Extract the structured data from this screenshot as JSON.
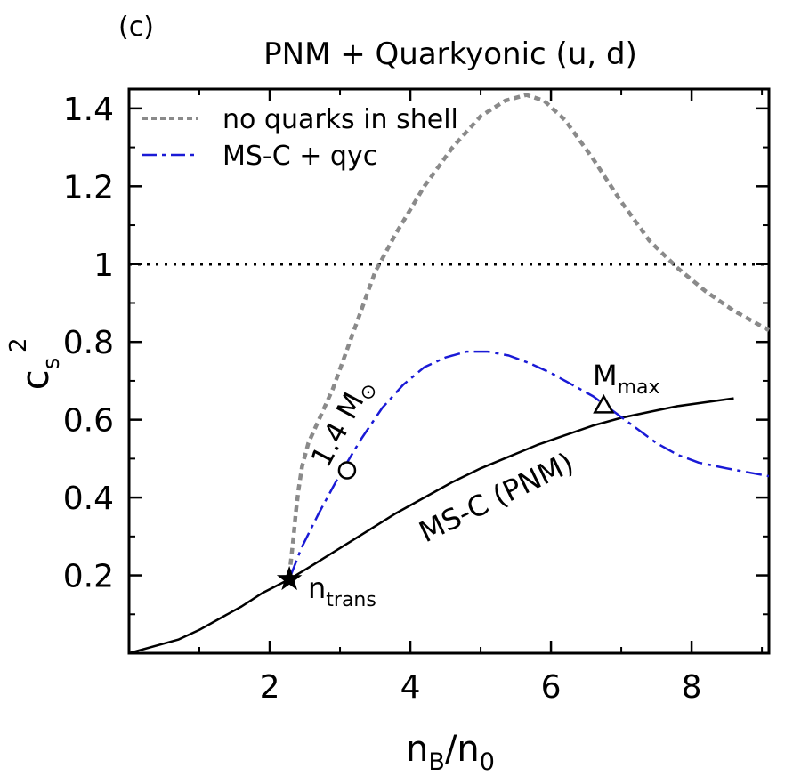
{
  "panel_label": "(c)",
  "chart_data": {
    "type": "line",
    "title": "PNM + Quarkyonic (u, d)",
    "xlabel": {
      "main": "n",
      "sub": "B",
      "rest": "/n",
      "sub2": "0"
    },
    "ylabel": {
      "main": "c",
      "sup": "2",
      "sub": "s"
    },
    "xlim": [
      0,
      9.1
    ],
    "ylim": [
      0,
      1.45
    ],
    "x_ticks": [
      {
        "value": 2,
        "label": "2"
      },
      {
        "value": 4,
        "label": "4"
      },
      {
        "value": 6,
        "label": "6"
      },
      {
        "value": 8,
        "label": "8"
      }
    ],
    "y_ticks": [
      {
        "value": 0.2,
        "label": "0.2"
      },
      {
        "value": 0.4,
        "label": "0.4"
      },
      {
        "value": 0.6,
        "label": "0.6"
      },
      {
        "value": 0.8,
        "label": "0.8"
      },
      {
        "value": 1.0,
        "label": "1"
      },
      {
        "value": 1.2,
        "label": "1.2"
      },
      {
        "value": 1.4,
        "label": "1.4"
      }
    ],
    "grid": false,
    "legend_position": "top-left",
    "series": [
      {
        "name": "no quarks in shell",
        "color": "#8a8a8a",
        "style": "dotted",
        "in_legend": true,
        "points": [
          [
            2.28,
            0.2
          ],
          [
            2.31,
            0.25
          ],
          [
            2.34,
            0.3
          ],
          [
            2.37,
            0.36
          ],
          [
            2.41,
            0.42
          ],
          [
            2.46,
            0.48
          ],
          [
            2.55,
            0.54
          ],
          [
            2.7,
            0.6
          ],
          [
            2.9,
            0.68
          ],
          [
            3.1,
            0.78
          ],
          [
            3.3,
            0.88
          ],
          [
            3.5,
            0.98
          ],
          [
            3.8,
            1.08
          ],
          [
            4.2,
            1.2
          ],
          [
            4.6,
            1.3
          ],
          [
            5.0,
            1.38
          ],
          [
            5.35,
            1.42
          ],
          [
            5.65,
            1.435
          ],
          [
            5.9,
            1.42
          ],
          [
            6.2,
            1.37
          ],
          [
            6.6,
            1.27
          ],
          [
            7.0,
            1.16
          ],
          [
            7.4,
            1.06
          ],
          [
            7.8,
            0.99
          ],
          [
            8.2,
            0.93
          ],
          [
            8.6,
            0.88
          ],
          [
            9.1,
            0.83
          ]
        ]
      },
      {
        "name": "MS-C + qyc",
        "color": "#1a1ad6",
        "style": "dashdot",
        "in_legend": true,
        "points": [
          [
            2.3,
            0.2
          ],
          [
            2.45,
            0.27
          ],
          [
            2.7,
            0.36
          ],
          [
            3.0,
            0.46
          ],
          [
            3.3,
            0.55
          ],
          [
            3.6,
            0.63
          ],
          [
            3.9,
            0.69
          ],
          [
            4.2,
            0.735
          ],
          [
            4.5,
            0.76
          ],
          [
            4.8,
            0.775
          ],
          [
            5.1,
            0.775
          ],
          [
            5.4,
            0.765
          ],
          [
            5.7,
            0.745
          ],
          [
            6.0,
            0.72
          ],
          [
            6.3,
            0.69
          ],
          [
            6.6,
            0.66
          ],
          [
            6.9,
            0.62
          ],
          [
            7.2,
            0.58
          ],
          [
            7.5,
            0.54
          ],
          [
            7.8,
            0.51
          ],
          [
            8.1,
            0.49
          ],
          [
            8.5,
            0.475
          ],
          [
            9.1,
            0.455
          ]
        ]
      },
      {
        "name": "MS-C (PNM)",
        "color": "#000000",
        "style": "solid",
        "in_legend": false,
        "points": [
          [
            0,
            0
          ],
          [
            0.3,
            0.015
          ],
          [
            0.7,
            0.035
          ],
          [
            1.0,
            0.06
          ],
          [
            1.3,
            0.09
          ],
          [
            1.6,
            0.12
          ],
          [
            1.9,
            0.155
          ],
          [
            2.28,
            0.19
          ],
          [
            2.6,
            0.225
          ],
          [
            3.0,
            0.27
          ],
          [
            3.4,
            0.315
          ],
          [
            3.8,
            0.36
          ],
          [
            4.2,
            0.4
          ],
          [
            4.6,
            0.44
          ],
          [
            5.0,
            0.475
          ],
          [
            5.4,
            0.505
          ],
          [
            5.8,
            0.535
          ],
          [
            6.2,
            0.56
          ],
          [
            6.6,
            0.585
          ],
          [
            7.0,
            0.605
          ],
          [
            7.4,
            0.62
          ],
          [
            7.8,
            0.635
          ],
          [
            8.2,
            0.645
          ],
          [
            8.6,
            0.655
          ]
        ]
      },
      {
        "name": "causality limit",
        "color": "#000000",
        "style": "dotted-fine",
        "in_legend": false,
        "points": [
          [
            0,
            1.0
          ],
          [
            9.1,
            1.0
          ]
        ]
      }
    ],
    "markers": [
      {
        "shape": "star",
        "x": 2.28,
        "y": 0.19,
        "label": "n",
        "label_sub": "trans"
      },
      {
        "shape": "circle",
        "x": 3.1,
        "y": 0.47,
        "label": "1.4 M",
        "label_symbol": "⊙"
      },
      {
        "shape": "triangle",
        "x": 6.75,
        "y": 0.635,
        "label": "M",
        "label_sub": "max"
      }
    ],
    "curve_label": "MS-C (PNM)"
  }
}
